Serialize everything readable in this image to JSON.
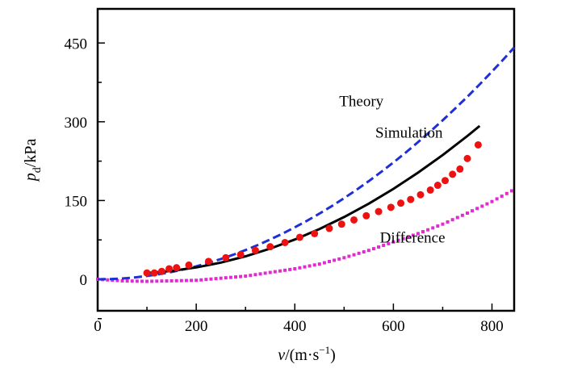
{
  "chart_data": {
    "type": "line",
    "title": "",
    "xlabel_main": "v",
    "xlabel_rest": "/(m·s",
    "xlabel_sup": "−1",
    "xlabel_close": ")",
    "ylabel_main": "p",
    "ylabel_sub": "d",
    "ylabel_rest": "/kPa",
    "xlim": [
      0,
      845
    ],
    "ylim": [
      -60,
      515
    ],
    "x_ticks": [
      0,
      200,
      400,
      600,
      800
    ],
    "x_tick_labels": [
      "0",
      "200",
      "400",
      "600",
      "800"
    ],
    "y_ticks": [
      0,
      150,
      300,
      450
    ],
    "y_tick_labels": [
      "0",
      "150",
      "300",
      "450"
    ],
    "grid": false,
    "annotations": [
      {
        "text": "Theory",
        "x": 580,
        "y": 330
      },
      {
        "text": "Simulation",
        "x": 700,
        "y": 270
      },
      {
        "text": "Difference",
        "x": 705,
        "y": 70
      }
    ],
    "series": [
      {
        "name": "Theory",
        "style": "dashed",
        "color": "#1f2fd6",
        "coef": 0.000618,
        "x": [
          0,
          25,
          50,
          75,
          100,
          125,
          150,
          175,
          200,
          225,
          250,
          275,
          300,
          325,
          350,
          375,
          400,
          425,
          450,
          475,
          500,
          525,
          550,
          575,
          600,
          625,
          650,
          675,
          700,
          725,
          750,
          775,
          800,
          825,
          845
        ],
        "y": [
          0.0,
          0.4,
          1.5,
          3.5,
          6.2,
          9.7,
          13.9,
          18.9,
          24.7,
          31.3,
          38.6,
          46.7,
          55.6,
          65.3,
          75.7,
          86.9,
          98.9,
          111.6,
          125.1,
          139.4,
          154.5,
          170.3,
          186.9,
          204.3,
          222.5,
          241.4,
          261.1,
          281.6,
          302.8,
          324.9,
          347.6,
          371.2,
          395.5,
          420.6,
          441.3
        ]
      },
      {
        "name": "Simulation",
        "style": "markers",
        "color": "#ee1111",
        "x": [
          100,
          115,
          130,
          145,
          160,
          185,
          225,
          260,
          290,
          320,
          350,
          380,
          410,
          440,
          470,
          495,
          520,
          545,
          570,
          595,
          615,
          635,
          655,
          675,
          690,
          705,
          720,
          735,
          750,
          772
        ],
        "y": [
          12,
          12,
          15,
          20,
          22,
          27,
          34,
          41,
          47,
          55,
          62,
          70,
          80,
          87,
          97,
          105,
          113,
          121,
          129,
          137,
          145,
          152,
          161,
          170,
          179,
          188,
          200,
          210,
          230,
          256
        ]
      },
      {
        "name": "Simulation fit",
        "style": "solid",
        "color": "#000000",
        "x": [
          100,
          150,
          200,
          250,
          300,
          350,
          400,
          450,
          500,
          550,
          600,
          650,
          700,
          750,
          775
        ],
        "y": [
          12.0,
          15.9,
          22.5,
          31.8,
          43.7,
          58.4,
          75.7,
          95.8,
          118.5,
          144.0,
          172.1,
          203.0,
          236.5,
          272.8,
          292.0
        ]
      },
      {
        "name": "Difference",
        "style": "dotted-markers",
        "color": "#e02bd0",
        "x": [
          0,
          50,
          100,
          150,
          200,
          250,
          300,
          350,
          400,
          450,
          500,
          550,
          600,
          650,
          700,
          750,
          800,
          845
        ],
        "y": [
          0,
          -3,
          -4,
          -3,
          -2,
          2,
          6,
          13,
          20,
          29,
          41,
          55,
          71,
          87,
          105,
          126,
          148,
          171
        ]
      }
    ]
  }
}
